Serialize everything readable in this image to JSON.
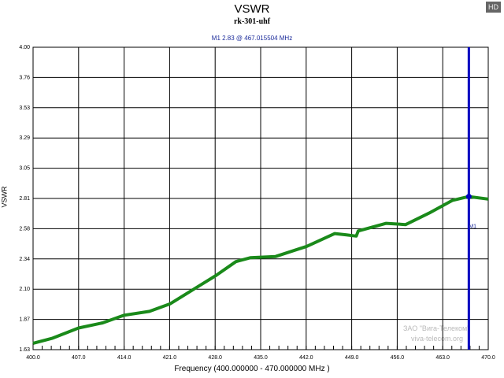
{
  "badge": "HD",
  "watermark": {
    "line1": "ЗАО \"Вига-Телеком\"",
    "line2": "viva-telecom.org"
  },
  "colors": {
    "trace": "#1a8a1a",
    "marker": "#0000c0",
    "grid": "#000000"
  },
  "chart_data": {
    "type": "line",
    "title": "VSWR",
    "subtitle": "rk-301-uhf",
    "xlabel": "Frequency (400.000000 - 470.000000 MHz )",
    "ylabel": "VSWR",
    "xlim": [
      400,
      470
    ],
    "ylim": [
      1.63,
      4.0
    ],
    "xticks": [
      "400.0",
      "407.0",
      "414.0",
      "421.0",
      "428.0",
      "435.0",
      "442.0",
      "449.0",
      "456.0",
      "463.0",
      "470.0"
    ],
    "yticks": [
      "1.63",
      "1.87",
      "2.10",
      "2.34",
      "2.58",
      "2.81",
      "3.05",
      "3.29",
      "3.53",
      "3.76",
      "4.00"
    ],
    "grid": true,
    "series": [
      {
        "name": "VSWR",
        "x": [
          400,
          403,
          407,
          410.7,
          414,
          417.9,
          421.1,
          424.6,
          428.1,
          431.2,
          433.4,
          437.3,
          442.1,
          446.4,
          448.2,
          449.7,
          450.0,
          454.3,
          457.3,
          460.9,
          464.5,
          467.0,
          470
        ],
        "y": [
          1.68,
          1.72,
          1.8,
          1.84,
          1.9,
          1.93,
          1.99,
          2.1,
          2.21,
          2.32,
          2.35,
          2.36,
          2.44,
          2.54,
          2.53,
          2.52,
          2.56,
          2.62,
          2.61,
          2.7,
          2.8,
          2.83,
          2.81
        ]
      }
    ],
    "marker": {
      "name": "M1",
      "label": "M1  2.83 @ 467.015504 MHz",
      "tag": "M1",
      "x": 467.015504,
      "y": 2.83
    }
  }
}
